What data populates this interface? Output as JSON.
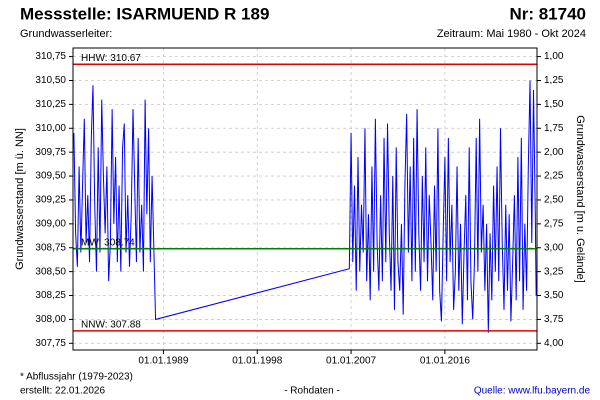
{
  "chart_data": {
    "type": "line",
    "title": "Messstelle: ISARMUEND R 189",
    "station_number": "Nr: 81740",
    "subtitle": "Grundwasserleiter:",
    "period": "Zeitraum: Mai 1980 - Okt 2024",
    "ylabel": "Grundwasserstand [m ü. NN]",
    "y2label": "Grundwasserstand [m u. Gelände]",
    "footnote": "* Abflussjahr (1979-2023)",
    "created": "erstellt:  22.01.2026",
    "data_note": "- Rohdaten -",
    "source": "Quelle: www.lfu.bayern.de",
    "grid": true,
    "xlim": [
      "1980-05-01",
      "2024-10-31"
    ],
    "xticks": [
      {
        "value": "1989-01-01",
        "label": "01.01.1989"
      },
      {
        "value": "1998-01-01",
        "label": "01.01.1998"
      },
      {
        "value": "2007-01-01",
        "label": "01.01.2007"
      },
      {
        "value": "2016-01-01",
        "label": "01.01.2016"
      }
    ],
    "ylim": [
      307.68,
      310.84
    ],
    "yticks": [
      {
        "value": 307.75,
        "label": "307,75"
      },
      {
        "value": 308.0,
        "label": "308,00"
      },
      {
        "value": 308.25,
        "label": "308,25"
      },
      {
        "value": 308.5,
        "label": "308,50"
      },
      {
        "value": 308.75,
        "label": "308,75"
      },
      {
        "value": 309.0,
        "label": "309,00"
      },
      {
        "value": 309.25,
        "label": "309,25"
      },
      {
        "value": 309.5,
        "label": "309,50"
      },
      {
        "value": 309.75,
        "label": "309,75"
      },
      {
        "value": 310.0,
        "label": "310,00"
      },
      {
        "value": 310.25,
        "label": "310,25"
      },
      {
        "value": 310.5,
        "label": "310,50"
      },
      {
        "value": 310.75,
        "label": "310,75"
      }
    ],
    "y2lim": [
      4.07,
      0.91
    ],
    "y2ticks": [
      {
        "value": 4.0,
        "label": "4,00"
      },
      {
        "value": 3.75,
        "label": "3,75"
      },
      {
        "value": 3.5,
        "label": "3,50"
      },
      {
        "value": 3.25,
        "label": "3,25"
      },
      {
        "value": 3.0,
        "label": "3,00"
      },
      {
        "value": 2.75,
        "label": "2,75"
      },
      {
        "value": 2.5,
        "label": "2,50"
      },
      {
        "value": 2.25,
        "label": "2,25"
      },
      {
        "value": 2.0,
        "label": "2,00"
      },
      {
        "value": 1.75,
        "label": "1,75"
      },
      {
        "value": 1.5,
        "label": "1,50"
      },
      {
        "value": 1.25,
        "label": "1,25"
      },
      {
        "value": 1.0,
        "label": "1,00"
      }
    ],
    "reference_lines": [
      {
        "label": "HHW: 310.67",
        "value": 310.67,
        "color": "#e00000"
      },
      {
        "label": "MW: 308.74",
        "value": 308.74,
        "color": "#008000"
      },
      {
        "label": "NNW: 307.88",
        "value": 307.88,
        "color": "#e00000"
      }
    ],
    "series": [
      {
        "color": "#0000ff",
        "x": [
          "1980-06",
          "1980-08",
          "1980-10",
          "1980-12",
          "1981-02",
          "1981-04",
          "1981-06",
          "1981-08",
          "1981-10",
          "1981-12",
          "1982-02",
          "1982-04",
          "1982-06",
          "1982-08",
          "1982-10",
          "1982-12",
          "1983-02",
          "1983-04",
          "1983-06",
          "1983-08",
          "1983-10",
          "1983-12",
          "1984-02",
          "1984-04",
          "1984-06",
          "1984-08",
          "1984-10",
          "1984-12",
          "1985-02",
          "1985-04",
          "1985-06",
          "1985-08",
          "1985-10",
          "1985-12",
          "1986-02",
          "1986-04",
          "1986-06",
          "1986-08",
          "1986-10",
          "1986-12",
          "1987-02",
          "1987-04",
          "1987-06",
          "1987-08",
          "1987-10",
          "1987-12",
          "1988-02",
          "1988-04",
          "2006-11",
          "2007-01",
          "2007-03",
          "2007-05",
          "2007-07",
          "2007-09",
          "2007-11",
          "2008-01",
          "2008-03",
          "2008-05",
          "2008-07",
          "2008-09",
          "2008-11",
          "2009-01",
          "2009-03",
          "2009-05",
          "2009-07",
          "2009-09",
          "2009-11",
          "2010-01",
          "2010-03",
          "2010-05",
          "2010-07",
          "2010-09",
          "2010-11",
          "2011-01",
          "2011-03",
          "2011-05",
          "2011-07",
          "2011-09",
          "2011-11",
          "2012-01",
          "2012-03",
          "2012-05",
          "2012-07",
          "2012-09",
          "2012-11",
          "2013-01",
          "2013-03",
          "2013-05",
          "2013-07",
          "2013-09",
          "2013-11",
          "2014-01",
          "2014-03",
          "2014-05",
          "2014-07",
          "2014-09",
          "2014-11",
          "2015-01",
          "2015-03",
          "2015-05",
          "2015-07",
          "2015-09",
          "2015-11",
          "2016-01",
          "2016-03",
          "2016-05",
          "2016-07",
          "2016-09",
          "2016-11",
          "2017-01",
          "2017-03",
          "2017-05",
          "2017-07",
          "2017-09",
          "2017-11",
          "2018-01",
          "2018-03",
          "2018-05",
          "2018-07",
          "2018-09",
          "2018-11",
          "2019-01",
          "2019-03",
          "2019-05",
          "2019-07",
          "2019-09",
          "2019-11",
          "2020-01",
          "2020-03",
          "2020-05",
          "2020-07",
          "2020-09",
          "2020-11",
          "2021-01",
          "2021-03",
          "2021-05",
          "2021-07",
          "2021-09",
          "2021-11",
          "2022-01",
          "2022-03",
          "2022-05",
          "2022-07",
          "2022-09",
          "2022-11",
          "2023-01",
          "2023-03",
          "2023-05",
          "2023-07",
          "2023-09",
          "2023-11",
          "2024-01",
          "2024-03",
          "2024-05",
          "2024-07",
          "2024-09",
          "2024-10"
        ],
        "values": [
          309.95,
          308.9,
          308.55,
          309.6,
          308.7,
          309.4,
          310.1,
          308.8,
          309.3,
          308.6,
          309.9,
          310.45,
          309.2,
          308.5,
          309.8,
          308.7,
          310.3,
          309.5,
          308.9,
          309.6,
          308.4,
          308.8,
          310.2,
          309.0,
          309.7,
          308.6,
          309.4,
          308.5,
          309.8,
          310.05,
          308.7,
          309.3,
          308.55,
          309.1,
          310.2,
          309.4,
          308.6,
          309.9,
          308.7,
          309.2,
          308.5,
          310.3,
          309.1,
          310.0,
          308.6,
          309.5,
          308.75,
          308.0,
          308.53,
          309.95,
          308.6,
          309.4,
          308.3,
          309.7,
          308.5,
          309.2,
          308.7,
          310.0,
          308.4,
          309.1,
          308.2,
          309.6,
          308.5,
          310.1,
          308.8,
          308.3,
          309.3,
          308.4,
          309.9,
          308.6,
          310.05,
          308.9,
          308.3,
          309.5,
          308.1,
          309.8,
          308.6,
          308.3,
          309.0,
          308.05,
          309.4,
          310.15,
          308.7,
          309.6,
          308.4,
          309.9,
          308.5,
          310.2,
          308.9,
          308.3,
          309.5,
          308.6,
          309.8,
          308.4,
          309.3,
          308.8,
          308.2,
          309.4,
          308.5,
          310.0,
          308.3,
          307.98,
          308.9,
          309.7,
          308.4,
          309.9,
          308.6,
          309.2,
          308.1,
          308.5,
          309.6,
          308.3,
          309.0,
          307.95,
          308.7,
          309.3,
          308.2,
          309.8,
          308.4,
          308.0,
          308.6,
          309.9,
          308.5,
          310.1,
          308.7,
          309.2,
          308.3,
          309.0,
          307.86,
          308.9,
          308.2,
          309.4,
          308.5,
          309.6,
          308.4,
          310.0,
          308.8,
          308.1,
          309.2,
          308.3,
          309.1,
          307.98,
          308.6,
          309.3,
          308.2,
          309.7,
          308.4,
          309.9,
          308.1,
          309.0,
          308.3,
          309.6,
          310.5,
          308.8,
          310.4,
          309.1,
          308.25
        ]
      }
    ]
  }
}
